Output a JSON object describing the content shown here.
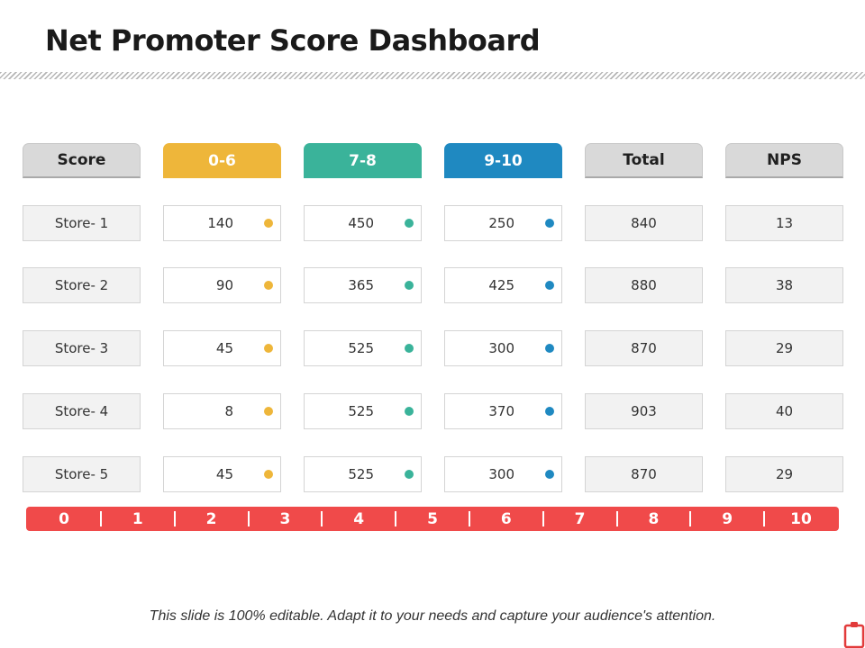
{
  "title": "Net Promoter Score Dashboard",
  "headers": [
    "Score",
    "0-6",
    "7-8",
    "9-10",
    "Total",
    "NPS"
  ],
  "colors": {
    "detractors": "#eeb63a",
    "passives": "#3ab39a",
    "promoters": "#1f89c1",
    "scale_bar": "#f04a4a"
  },
  "rows": [
    {
      "store": "Store- 1",
      "d": "140",
      "p": "450",
      "pr": "250",
      "total": "840",
      "nps": "13"
    },
    {
      "store": "Store- 2",
      "d": "90",
      "p": "365",
      "pr": "425",
      "total": "880",
      "nps": "38"
    },
    {
      "store": "Store- 3",
      "d": "45",
      "p": "525",
      "pr": "300",
      "total": "870",
      "nps": "29"
    },
    {
      "store": "Store- 4",
      "d": "8",
      "p": "525",
      "pr": "370",
      "total": "903",
      "nps": "40"
    },
    {
      "store": "Store- 5",
      "d": "45",
      "p": "525",
      "pr": "300",
      "total": "870",
      "nps": "29"
    }
  ],
  "scale": [
    "0",
    "1",
    "2",
    "3",
    "4",
    "5",
    "6",
    "7",
    "8",
    "9",
    "10"
  ],
  "footer": "This slide is 100% editable. Adapt it to your needs and capture your audience's attention.",
  "icons": {
    "corner": "clipboard-icon"
  }
}
